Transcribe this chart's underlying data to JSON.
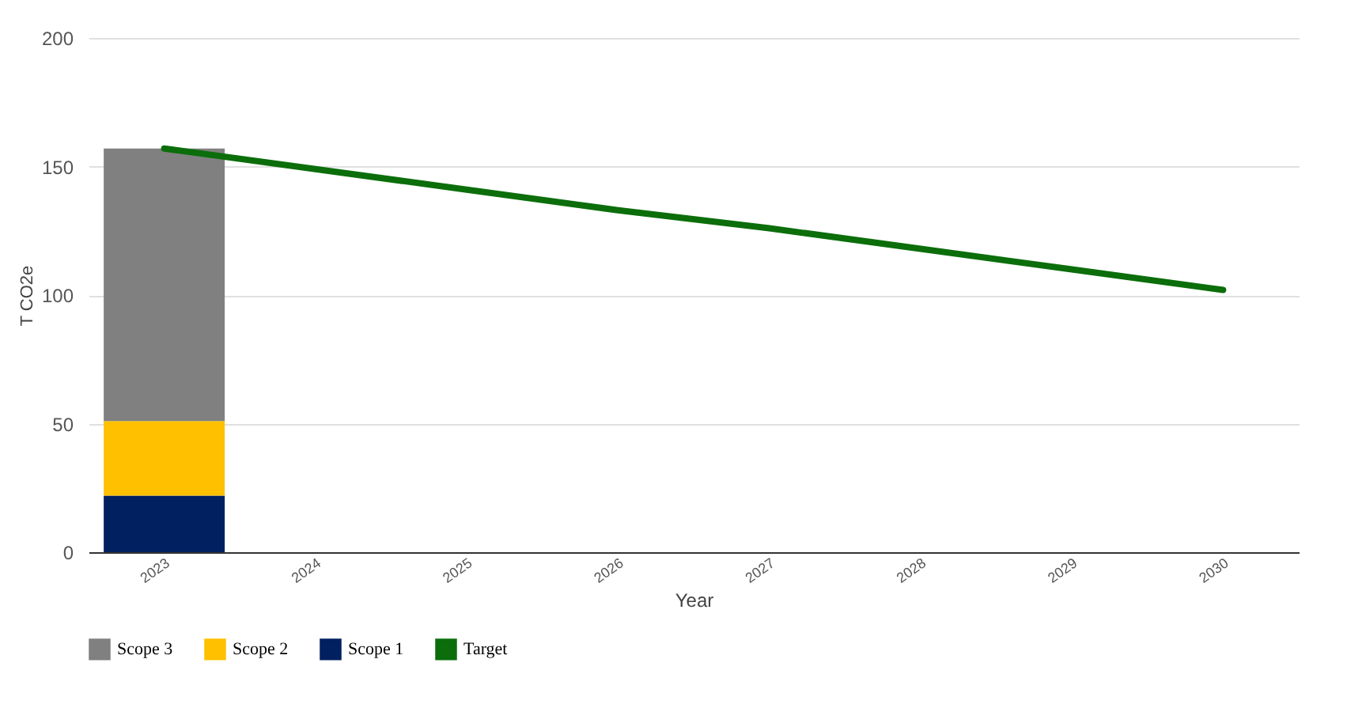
{
  "chart_data": {
    "type": "bar",
    "stacked": true,
    "xlabel": "Year",
    "ylabel": "T CO2e",
    "categories": [
      "2023",
      "2024",
      "2025",
      "2026",
      "2027",
      "2028",
      "2029",
      "2030"
    ],
    "series": [
      {
        "name": "Scope 1",
        "color": "#002060",
        "values": [
          22,
          null,
          null,
          null,
          null,
          null,
          null,
          null
        ]
      },
      {
        "name": "Scope 2",
        "color": "#ffc000",
        "values": [
          29,
          null,
          null,
          null,
          null,
          null,
          null,
          null
        ]
      },
      {
        "name": "Scope 3",
        "color": "#808080",
        "values": [
          106,
          null,
          null,
          null,
          null,
          null,
          null,
          null
        ]
      },
      {
        "name": "Target",
        "type": "line",
        "color": "#0b6e0b",
        "values": [
          157,
          149,
          141,
          133,
          126,
          118,
          110,
          102
        ]
      }
    ],
    "ylim": [
      0,
      200
    ],
    "yticks": [
      0,
      50,
      100,
      150,
      200
    ],
    "grid": "y",
    "legend": "bottom"
  }
}
